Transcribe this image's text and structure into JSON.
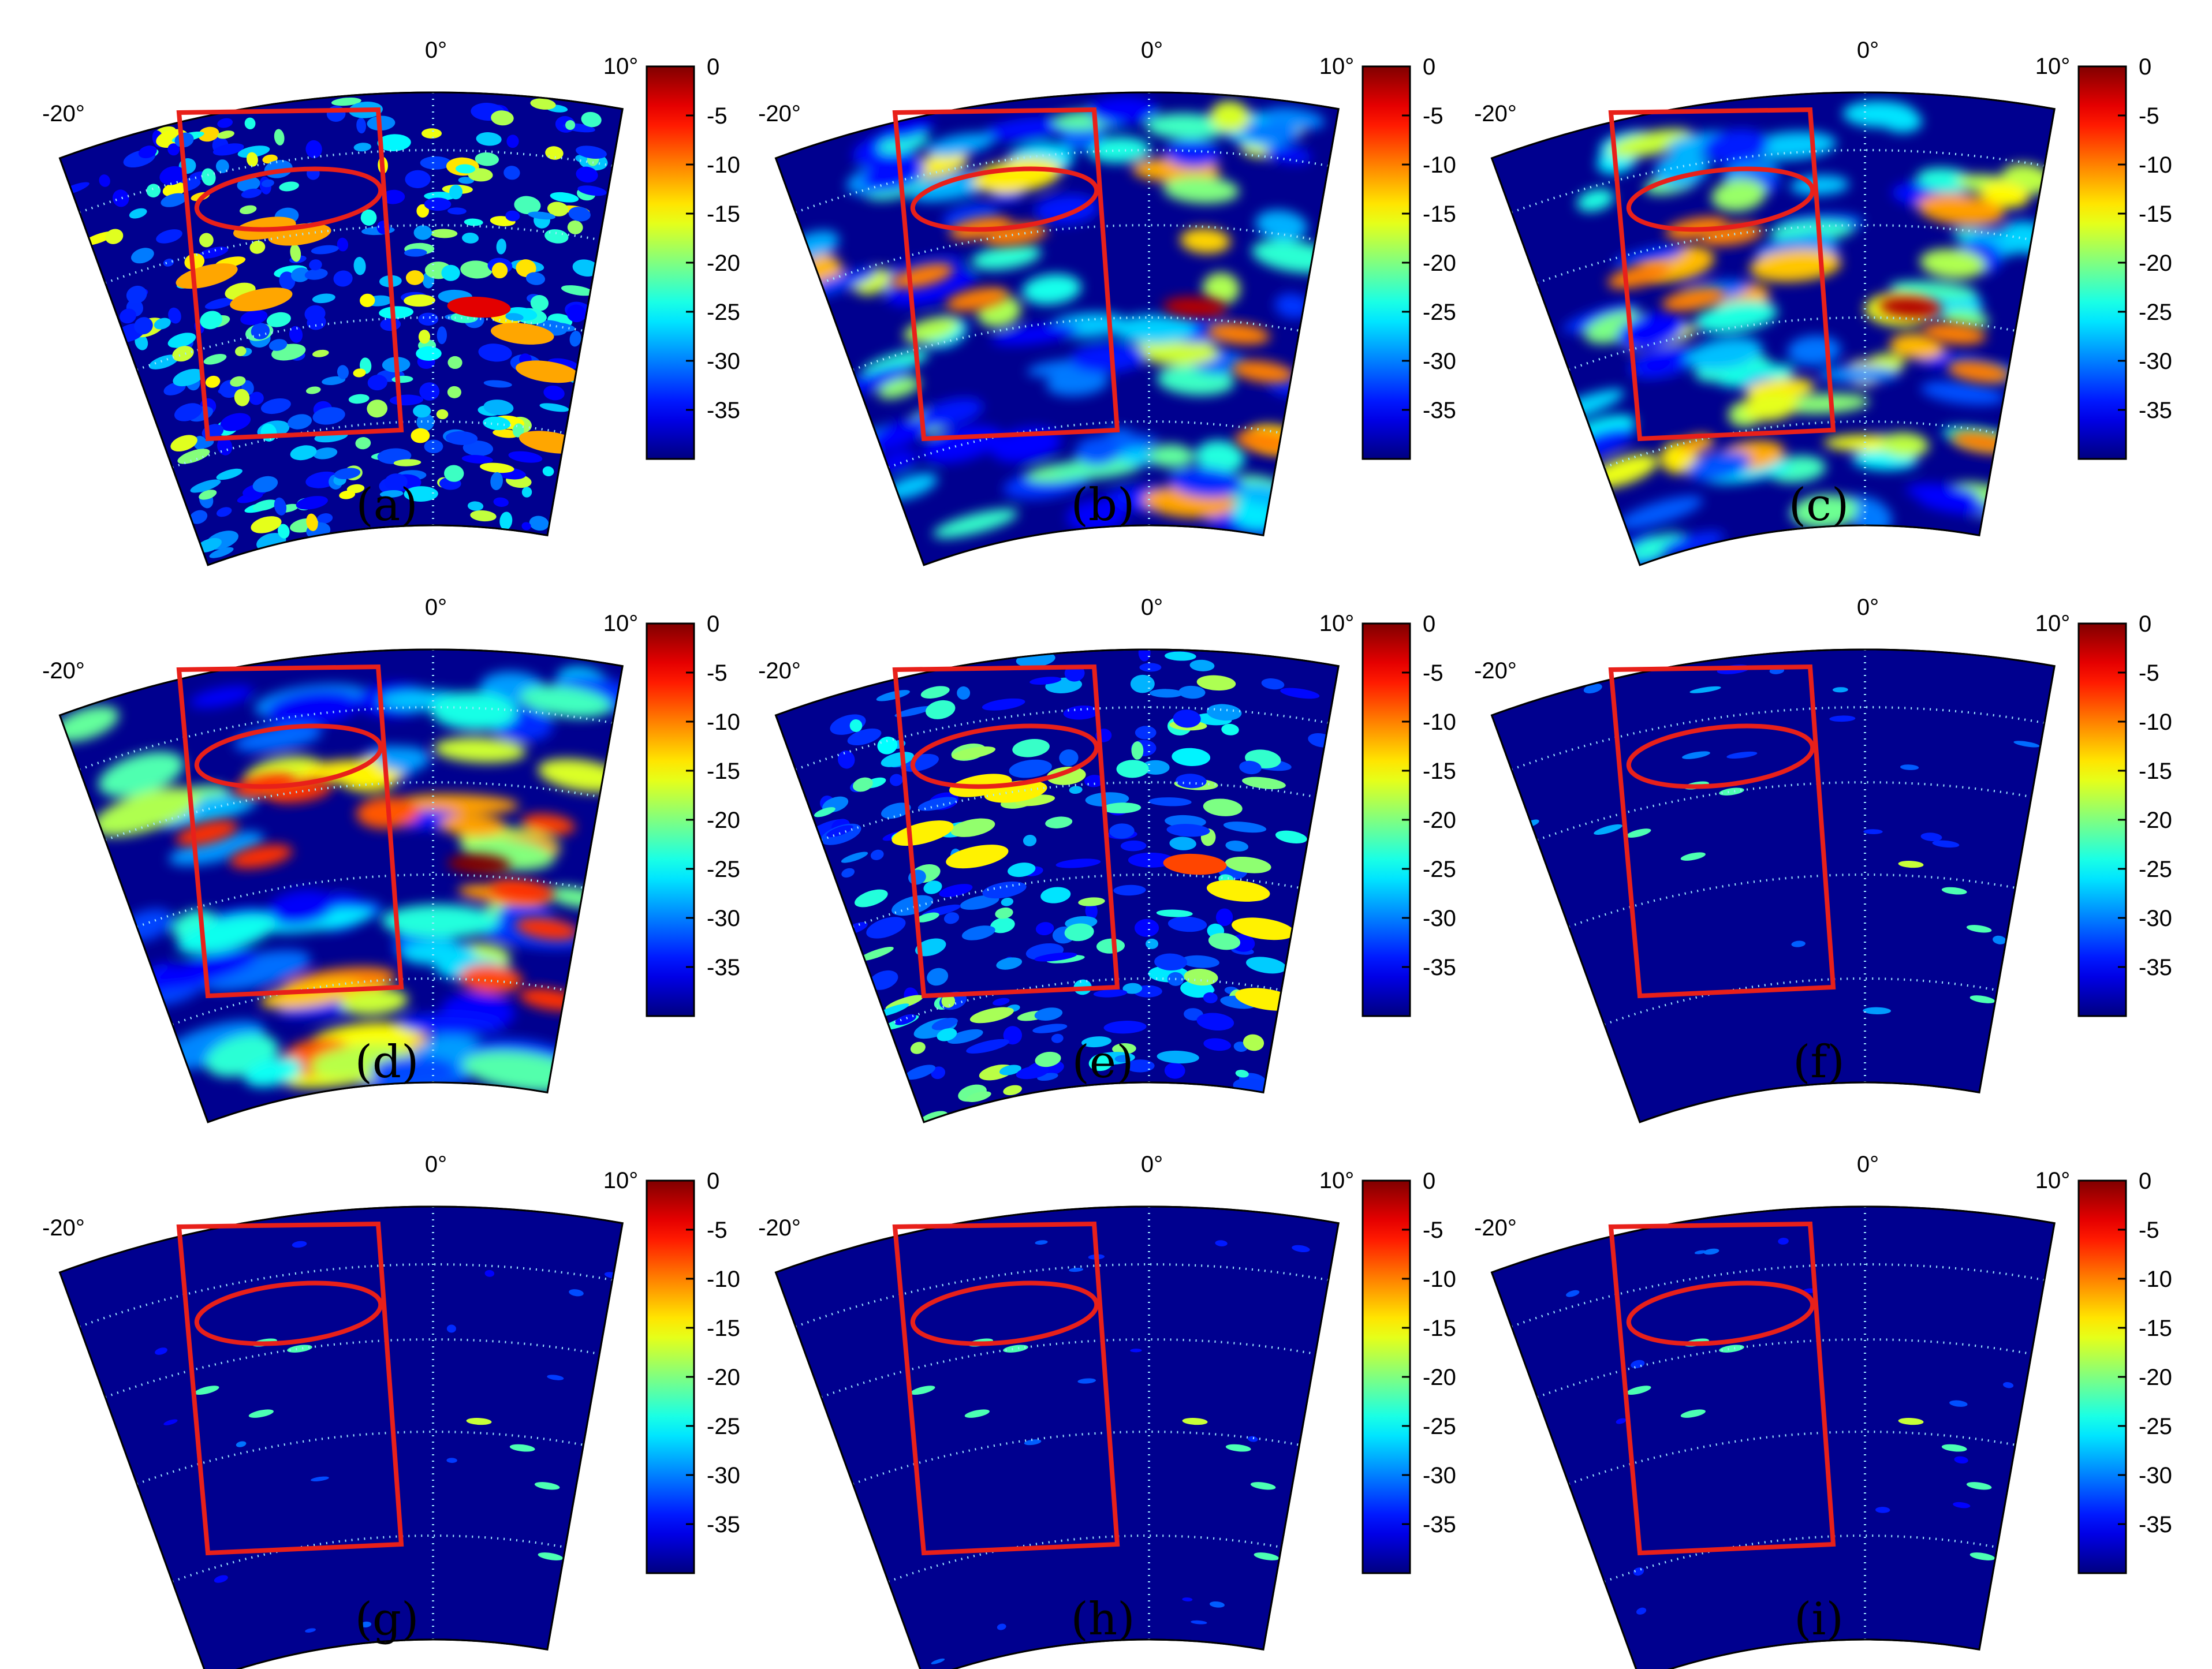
{
  "figure": {
    "angle_labels": {
      "left": "-20°",
      "center": "0°",
      "right": "10°"
    },
    "colorbar": {
      "ticks": [
        "0",
        "-5",
        "-10",
        "-15",
        "-20",
        "-25",
        "-30",
        "-35"
      ],
      "range": [
        -40,
        0
      ],
      "colormap": "jet"
    },
    "overlay": {
      "shapes": [
        "rectangle",
        "ellipse"
      ],
      "color": "#e8201a"
    },
    "grid": {
      "style": "dotted",
      "color": "#9fe8ff"
    },
    "background_color": "#00008f"
  },
  "panels": [
    {
      "label": "(a)",
      "texture": "fine-speckle",
      "level": 0.55
    },
    {
      "label": "(b)",
      "texture": "smooth-blobs",
      "level": 0.6
    },
    {
      "label": "(c)",
      "texture": "smooth-blobs",
      "level": 0.6
    },
    {
      "label": "(d)",
      "texture": "wide-blobs",
      "level": 0.7
    },
    {
      "label": "(e)",
      "texture": "mid-speckle",
      "level": 0.45
    },
    {
      "label": "(f)",
      "texture": "sparse",
      "level": 0.2
    },
    {
      "label": "(g)",
      "texture": "very-sparse",
      "level": 0.12
    },
    {
      "label": "(h)",
      "texture": "very-sparse",
      "level": 0.12
    },
    {
      "label": "(i)",
      "texture": "very-sparse",
      "level": 0.12
    }
  ]
}
